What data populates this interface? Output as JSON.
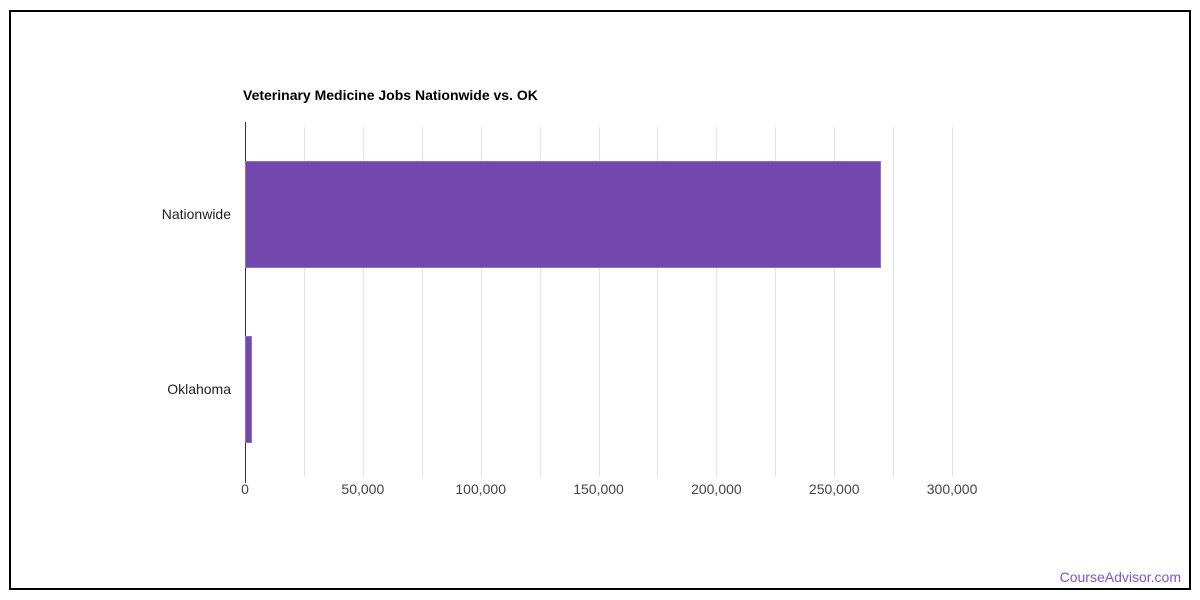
{
  "frame": {
    "border_color": "#000000",
    "background": "#ffffff"
  },
  "chart_data": {
    "type": "bar",
    "orientation": "horizontal",
    "title": "Veterinary Medicine Jobs Nationwide vs. OK",
    "categories": [
      "Nationwide",
      "Oklahoma"
    ],
    "values": [
      270000,
      2900
    ],
    "xlim": [
      0,
      325000
    ],
    "x_major_tick_interval": 50000,
    "x_minor_tick_interval": 25000,
    "x_tick_labels": [
      "0",
      "50,000",
      "100,000",
      "150,000",
      "200,000",
      "250,000",
      "300,000"
    ],
    "grid": true,
    "legend_position": "none",
    "colors": {
      "bar": "#7348ac",
      "bar_border": "#8e6fc6",
      "gridline": "#e2e2e2",
      "axis_line": "#333333",
      "tick_label": "#444444",
      "category_label": "#222222",
      "title": "#000000"
    }
  },
  "footer": {
    "link_text": "CourseAdvisor.com",
    "link_color": "#7e57c2"
  }
}
